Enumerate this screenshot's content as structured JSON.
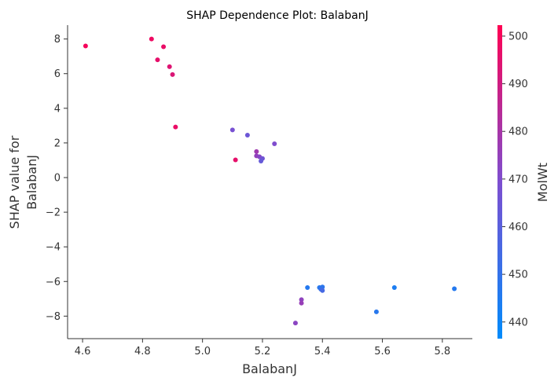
{
  "chart_data": {
    "type": "scatter",
    "title": "SHAP Dependence Plot: BalabanJ",
    "xlabel": "BalabanJ",
    "ylabel_lines": [
      "SHAP value for",
      "BalabanJ"
    ],
    "xlim": [
      4.55,
      5.9
    ],
    "ylim": [
      -9.3,
      8.8
    ],
    "xticks": [
      4.6,
      4.8,
      5.0,
      5.2,
      5.4,
      5.6,
      5.8
    ],
    "xtick_labels": [
      "4.6",
      "4.8",
      "5.0",
      "5.2",
      "5.4",
      "5.6",
      "5.8"
    ],
    "yticks": [
      -8,
      -6,
      -4,
      -2,
      0,
      2,
      4,
      6,
      8
    ],
    "ytick_labels": [
      "−8",
      "−6",
      "−4",
      "−2",
      "0",
      "2",
      "4",
      "6",
      "8"
    ],
    "color_scale": {
      "label": "MolWt",
      "range": [
        436.5,
        502.3
      ],
      "ticks": [
        440,
        450,
        460,
        470,
        480,
        490,
        500
      ],
      "tick_labels": [
        "440",
        "450",
        "460",
        "470",
        "480",
        "490",
        "500"
      ],
      "low_color": "#008bfb",
      "high_color": "#ff0052"
    },
    "points": [
      {
        "x": 4.61,
        "y": 7.6,
        "c": 500
      },
      {
        "x": 4.83,
        "y": 8.0,
        "c": 498
      },
      {
        "x": 4.87,
        "y": 7.55,
        "c": 497
      },
      {
        "x": 4.85,
        "y": 6.8,
        "c": 496
      },
      {
        "x": 4.89,
        "y": 6.4,
        "c": 494
      },
      {
        "x": 4.9,
        "y": 5.95,
        "c": 493
      },
      {
        "x": 4.91,
        "y": 2.92,
        "c": 497
      },
      {
        "x": 5.1,
        "y": 2.75,
        "c": 468
      },
      {
        "x": 5.15,
        "y": 2.45,
        "c": 465
      },
      {
        "x": 5.24,
        "y": 1.95,
        "c": 470
      },
      {
        "x": 5.11,
        "y": 1.02,
        "c": 496
      },
      {
        "x": 5.18,
        "y": 1.5,
        "c": 478
      },
      {
        "x": 5.18,
        "y": 1.25,
        "c": 475
      },
      {
        "x": 5.19,
        "y": 1.2,
        "c": 472
      },
      {
        "x": 5.2,
        "y": 1.1,
        "c": 466
      },
      {
        "x": 5.195,
        "y": 0.95,
        "c": 463
      },
      {
        "x": 5.35,
        "y": -6.35,
        "c": 446
      },
      {
        "x": 5.39,
        "y": -6.35,
        "c": 447
      },
      {
        "x": 5.4,
        "y": -6.32,
        "c": 448
      },
      {
        "x": 5.395,
        "y": -6.45,
        "c": 451
      },
      {
        "x": 5.4,
        "y": -6.52,
        "c": 455
      },
      {
        "x": 5.64,
        "y": -6.35,
        "c": 444
      },
      {
        "x": 5.84,
        "y": -6.42,
        "c": 446
      },
      {
        "x": 5.58,
        "y": -7.75,
        "c": 447
      },
      {
        "x": 5.33,
        "y": -7.05,
        "c": 474
      },
      {
        "x": 5.33,
        "y": -7.25,
        "c": 476
      },
      {
        "x": 5.31,
        "y": -8.4,
        "c": 473
      }
    ]
  }
}
